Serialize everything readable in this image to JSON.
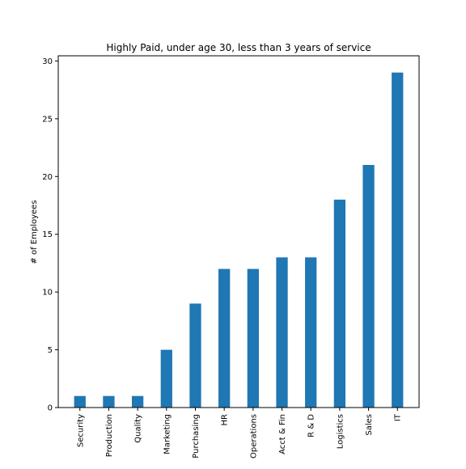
{
  "chart_data": {
    "type": "bar",
    "title": "Highly Paid, under age 30, less than 3 years of service",
    "xlabel": "",
    "ylabel": "# of Employees",
    "categories": [
      "Security",
      "Production",
      "Quality",
      "Marketing",
      "Purchasing",
      "HR",
      "Operations",
      "Acct & Fin",
      "R & D",
      "Logistics",
      "Sales",
      "IT"
    ],
    "values": [
      1,
      1,
      1,
      5,
      9,
      12,
      12,
      13,
      13,
      18,
      21,
      29
    ],
    "ylim": [
      0,
      30.45
    ],
    "yticks": [
      0,
      5,
      10,
      15,
      20,
      25,
      30
    ],
    "grid": false,
    "legend": "none",
    "bar_color": "#1f77b4"
  }
}
